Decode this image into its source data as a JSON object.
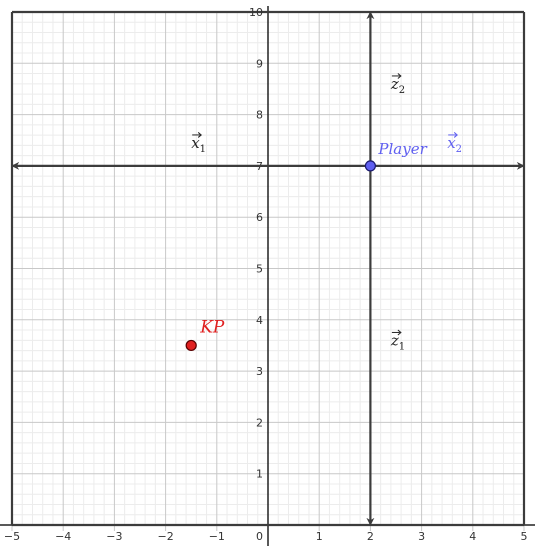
{
  "graph": {
    "x_range": [
      -5,
      5
    ],
    "y_range": [
      0,
      10
    ],
    "x_ticks": [
      "−5",
      "−4",
      "−3",
      "−2",
      "−1",
      "0",
      "1",
      "2",
      "3",
      "4",
      "5"
    ],
    "y_ticks": [
      "1",
      "2",
      "3",
      "4",
      "5",
      "6",
      "7",
      "8",
      "9",
      "10"
    ],
    "grid": true,
    "colors": {
      "grid_major": "#c8c8c8",
      "grid_minor": "#ececec",
      "axis": "#222222",
      "vector": "#3c3c3c",
      "player": "#5f5ff0",
      "kp": "#e02020"
    }
  },
  "vectors": [
    {
      "id": "x1",
      "from": [
        2,
        7
      ],
      "to": [
        -5,
        7
      ],
      "label_base": "x",
      "label_sub": "1",
      "label_at": [
        -1.5,
        7.35
      ]
    },
    {
      "id": "x2",
      "from": [
        2,
        7
      ],
      "to": [
        5,
        7
      ],
      "label_base": "x",
      "label_sub": "2",
      "label_at": [
        3.5,
        7.35
      ]
    },
    {
      "id": "z2",
      "from": [
        2,
        7
      ],
      "to": [
        2,
        10
      ],
      "label_base": "z",
      "label_sub": "2",
      "label_at": [
        2.4,
        8.5
      ]
    },
    {
      "id": "z1",
      "from": [
        2,
        7
      ],
      "to": [
        2,
        0
      ],
      "label_base": "z",
      "label_sub": "1",
      "label_at": [
        2.4,
        3.5
      ]
    }
  ],
  "points": [
    {
      "id": "player",
      "label": "Player",
      "x": 2,
      "y": 7
    },
    {
      "id": "kp",
      "label": "KP",
      "x": -1.5,
      "y": 3.5
    }
  ]
}
